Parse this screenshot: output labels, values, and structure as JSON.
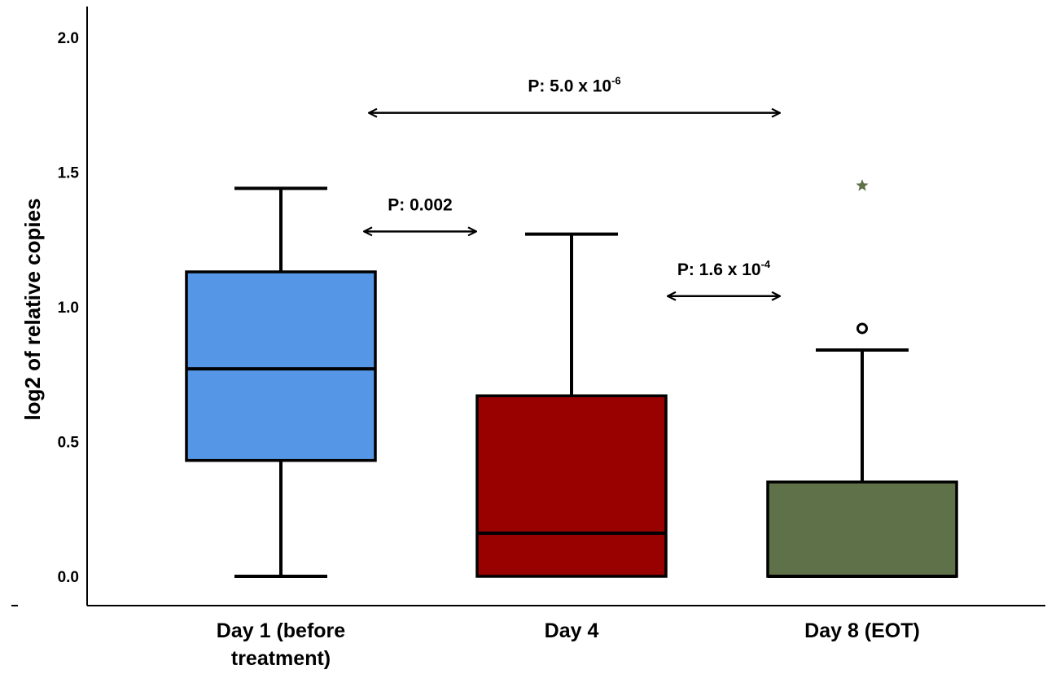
{
  "chart_data": {
    "type": "box",
    "ylabel": "log2 of relative copies",
    "ylim": [
      -0.09,
      2.1
    ],
    "yticks": [
      "0.0",
      "0.5",
      "1.0",
      "1.5",
      "2.0"
    ],
    "grid": false,
    "categories": [
      {
        "label_lines": [
          "Day 1 (before",
          "treatment)"
        ],
        "color": "#5597E6",
        "min": 0.0,
        "q1": 0.43,
        "median": 0.77,
        "q3": 1.13,
        "max": 1.44,
        "outliers": [],
        "extremes": []
      },
      {
        "label_lines": [
          "Day 4"
        ],
        "color": "#990000",
        "min": 0.0,
        "q1": 0.0,
        "median": 0.16,
        "q3": 0.67,
        "max": 1.27,
        "outliers": [],
        "extremes": []
      },
      {
        "label_lines": [
          "Day 8 (EOT)"
        ],
        "color": "#5E7148",
        "min": 0.0,
        "q1": 0.0,
        "median": 0.0,
        "q3": 0.35,
        "max": 0.84,
        "outliers": [
          0.92
        ],
        "extremes": [
          1.45
        ]
      }
    ],
    "annotations": [
      {
        "text": "P: 5.0 x 10",
        "sup": "-6",
        "from_cat": 0,
        "to_cat": 2,
        "y": 1.72
      },
      {
        "text": "P: 0.002",
        "sup": "",
        "from_cat": 0,
        "to_cat": 1,
        "y": 1.28
      },
      {
        "text": "P: 1.6 x 10",
        "sup": "-4",
        "from_cat": 1,
        "to_cat": 2,
        "y": 1.04
      }
    ],
    "extreme_color": "#5E7148"
  }
}
